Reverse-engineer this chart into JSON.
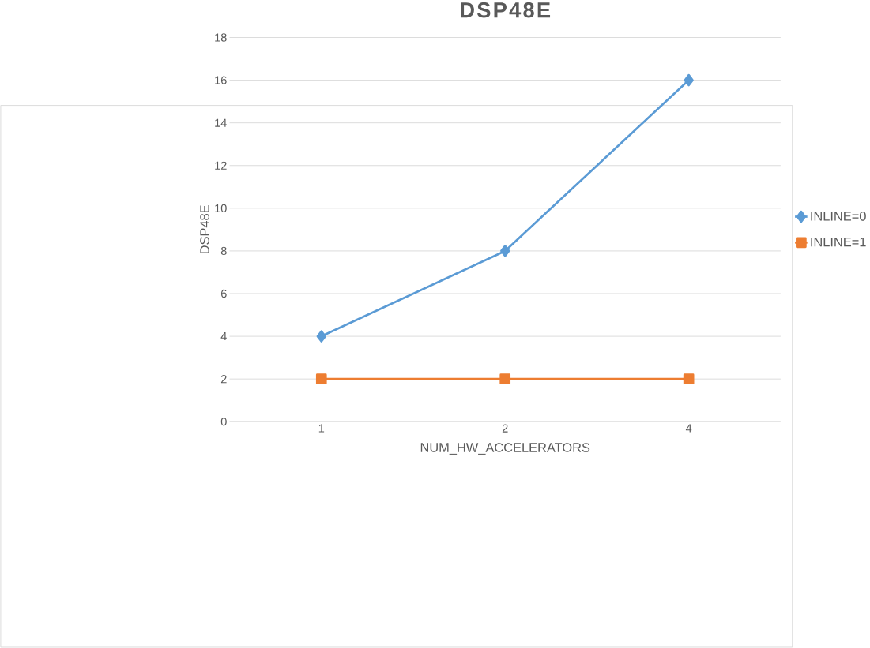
{
  "chart_data": {
    "type": "line",
    "title": "DSP48E",
    "xlabel": "NUM_HW_ACCELERATORS",
    "ylabel": "DSP48E",
    "categories": [
      "1",
      "2",
      "4"
    ],
    "series": [
      {
        "name": "INLINE=0",
        "color": "#5b9bd5",
        "marker": "diamond",
        "values": [
          4,
          8,
          16
        ]
      },
      {
        "name": "INLINE=1",
        "color": "#ed7d31",
        "marker": "square",
        "values": [
          2,
          2,
          2
        ]
      }
    ],
    "ylim": [
      0,
      18
    ],
    "yticks": [
      0,
      2,
      4,
      6,
      8,
      10,
      12,
      14,
      16,
      18
    ],
    "grid": "y",
    "legend": "right",
    "line_style": "solid"
  }
}
